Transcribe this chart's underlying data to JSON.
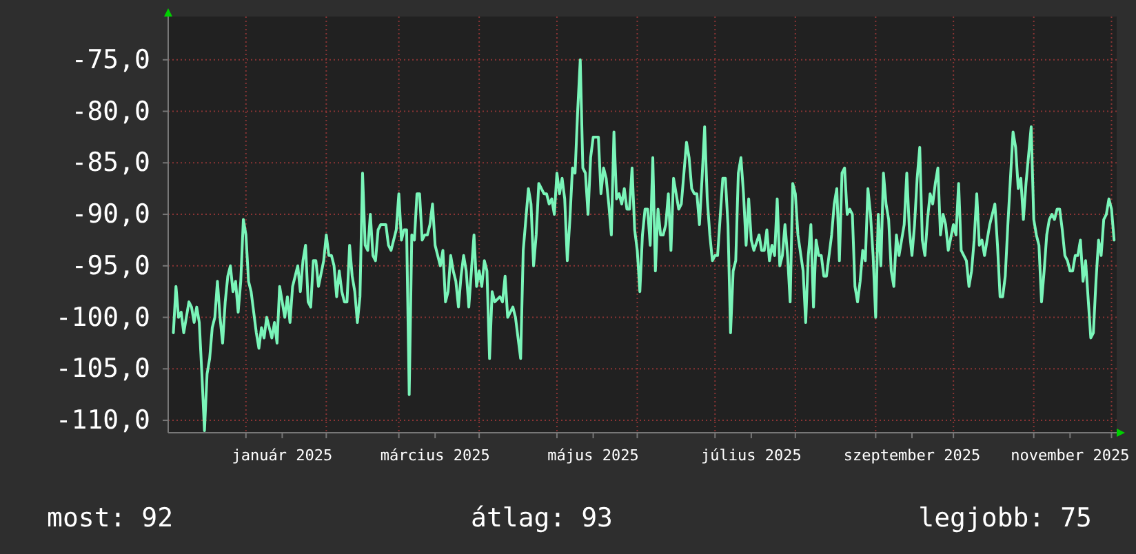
{
  "chart_data": {
    "type": "line",
    "x": [
      "2024-12-04",
      "2024-12-05",
      "2024-12-06",
      "2024-12-07",
      "2024-12-08",
      "2024-12-10",
      "2024-12-11",
      "2024-12-12",
      "2024-12-13",
      "2024-12-14",
      "2024-12-15",
      "2024-12-16",
      "2024-12-17",
      "2024-12-18",
      "2024-12-19",
      "2024-12-20",
      "2024-12-21",
      "2024-12-22",
      "2024-12-23",
      "2024-12-24",
      "2024-12-25",
      "2024-12-26",
      "2024-12-27",
      "2024-12-28",
      "2024-12-29",
      "2024-12-30",
      "2024-12-31",
      "2025-01-01",
      "2025-01-02",
      "2025-01-03",
      "2025-01-05",
      "2025-01-06",
      "2025-01-07",
      "2025-01-08",
      "2025-01-09",
      "2025-01-11",
      "2025-01-12",
      "2025-01-13",
      "2025-01-14",
      "2025-01-16",
      "2025-01-17",
      "2025-01-18",
      "2025-01-19",
      "2025-01-20",
      "2025-01-21",
      "2025-01-22",
      "2025-01-23",
      "2025-01-24",
      "2025-01-25",
      "2025-01-26",
      "2025-01-27",
      "2025-01-28",
      "2025-01-29",
      "2025-01-31",
      "2025-02-01",
      "2025-02-02",
      "2025-02-03",
      "2025-02-04",
      "2025-02-05",
      "2025-02-06",
      "2025-02-07",
      "2025-02-08",
      "2025-02-09",
      "2025-02-10",
      "2025-02-11",
      "2025-02-12",
      "2025-02-13",
      "2025-02-14",
      "2025-02-15",
      "2025-02-16",
      "2025-02-17",
      "2025-02-18",
      "2025-02-19",
      "2025-02-20",
      "2025-02-21",
      "2025-02-22",
      "2025-02-24",
      "2025-02-25",
      "2025-02-26",
      "2025-02-28",
      "2025-03-01",
      "2025-03-02",
      "2025-03-03",
      "2025-03-04",
      "2025-03-05",
      "2025-03-06",
      "2025-03-07",
      "2025-03-08",
      "2025-03-09",
      "2025-03-10",
      "2025-03-11",
      "2025-03-12",
      "2025-03-13",
      "2025-03-14",
      "2025-03-15",
      "2025-03-17",
      "2025-03-18",
      "2025-03-19",
      "2025-03-20",
      "2025-03-21",
      "2025-03-22",
      "2025-03-23",
      "2025-03-24",
      "2025-03-25",
      "2025-03-26",
      "2025-03-27",
      "2025-03-28",
      "2025-03-30",
      "2025-03-31",
      "2025-04-01",
      "2025-04-02",
      "2025-04-03",
      "2025-04-04",
      "2025-04-05",
      "2025-04-06",
      "2025-04-07",
      "2025-04-09",
      "2025-04-10",
      "2025-04-11",
      "2025-04-12",
      "2025-04-13",
      "2025-04-14",
      "2025-04-15",
      "2025-04-17",
      "2025-04-18",
      "2025-04-19",
      "2025-04-20",
      "2025-04-21",
      "2025-04-22",
      "2025-04-23",
      "2025-04-24",
      "2025-04-26",
      "2025-04-27",
      "2025-04-28",
      "2025-04-29",
      "2025-04-30",
      "2025-05-01",
      "2025-05-02",
      "2025-05-03",
      "2025-05-04",
      "2025-05-05",
      "2025-05-06",
      "2025-05-07",
      "2025-05-08",
      "2025-05-09",
      "2025-05-10",
      "2025-05-11",
      "2025-05-12",
      "2025-05-13",
      "2025-05-14",
      "2025-05-15",
      "2025-05-17",
      "2025-05-18",
      "2025-05-19",
      "2025-05-20",
      "2025-05-21",
      "2025-05-22",
      "2025-05-23",
      "2025-05-24",
      "2025-05-25",
      "2025-05-26",
      "2025-05-27",
      "2025-05-28",
      "2025-05-29",
      "2025-05-30",
      "2025-05-31",
      "2025-06-01",
      "2025-06-02",
      "2025-06-03",
      "2025-06-04",
      "2025-06-05",
      "2025-06-06",
      "2025-06-07",
      "2025-06-08",
      "2025-06-09",
      "2025-06-10",
      "2025-06-11",
      "2025-06-12",
      "2025-06-13",
      "2025-06-14",
      "2025-06-15",
      "2025-06-16",
      "2025-06-17",
      "2025-06-18",
      "2025-06-20",
      "2025-06-21",
      "2025-06-22",
      "2025-06-23",
      "2025-06-24",
      "2025-06-25",
      "2025-06-26",
      "2025-06-27",
      "2025-06-28",
      "2025-06-29",
      "2025-06-30",
      "2025-07-01",
      "2025-07-02",
      "2025-07-04",
      "2025-07-05",
      "2025-07-06",
      "2025-07-07",
      "2025-07-08",
      "2025-07-09",
      "2025-07-10",
      "2025-07-11",
      "2025-07-12",
      "2025-07-13",
      "2025-07-14",
      "2025-07-15",
      "2025-07-16",
      "2025-07-18",
      "2025-07-19",
      "2025-07-20",
      "2025-07-21",
      "2025-07-22",
      "2025-07-23",
      "2025-07-24",
      "2025-07-25",
      "2025-07-26",
      "2025-07-27",
      "2025-07-28",
      "2025-07-29",
      "2025-07-30",
      "2025-07-31",
      "2025-08-01",
      "2025-08-02",
      "2025-08-04",
      "2025-08-05",
      "2025-08-06",
      "2025-08-07",
      "2025-08-08",
      "2025-08-09",
      "2025-08-10",
      "2025-08-11",
      "2025-08-12",
      "2025-08-13",
      "2025-08-15",
      "2025-08-16",
      "2025-08-17",
      "2025-08-18",
      "2025-08-19",
      "2025-08-20",
      "2025-08-21",
      "2025-08-22",
      "2025-08-23",
      "2025-08-24",
      "2025-08-25",
      "2025-08-26",
      "2025-08-27",
      "2025-08-28",
      "2025-08-29",
      "2025-08-30",
      "2025-08-31",
      "2025-09-01",
      "2025-09-02",
      "2025-09-03",
      "2025-09-04",
      "2025-09-05",
      "2025-09-06",
      "2025-09-07",
      "2025-09-08",
      "2025-09-09",
      "2025-09-10",
      "2025-09-12",
      "2025-09-13",
      "2025-09-14",
      "2025-09-15",
      "2025-09-16",
      "2025-09-17",
      "2025-09-18",
      "2025-09-19",
      "2025-09-20",
      "2025-09-21",
      "2025-09-22",
      "2025-09-23",
      "2025-09-24",
      "2025-09-25",
      "2025-09-26",
      "2025-09-27",
      "2025-09-28",
      "2025-09-29",
      "2025-10-01",
      "2025-10-02",
      "2025-10-03",
      "2025-10-04",
      "2025-10-05",
      "2025-10-06",
      "2025-10-07",
      "2025-10-08",
      "2025-10-09",
      "2025-10-10",
      "2025-10-11",
      "2025-10-12",
      "2025-10-13",
      "2025-10-14",
      "2025-10-15",
      "2025-10-17",
      "2025-10-18",
      "2025-10-19",
      "2025-10-20",
      "2025-10-21",
      "2025-10-22",
      "2025-10-23",
      "2025-10-24",
      "2025-10-25",
      "2025-10-26",
      "2025-10-27",
      "2025-10-28",
      "2025-10-29",
      "2025-10-31",
      "2025-11-01",
      "2025-11-02",
      "2025-11-03",
      "2025-11-04",
      "2025-11-05",
      "2025-11-06",
      "2025-11-07",
      "2025-11-08",
      "2025-11-09",
      "2025-11-10",
      "2025-11-11",
      "2025-11-12",
      "2025-11-13",
      "2025-11-14",
      "2025-11-15",
      "2025-11-16",
      "2025-11-17",
      "2025-11-18",
      "2025-11-19",
      "2025-11-20",
      "2025-11-21",
      "2025-11-23",
      "2025-11-24",
      "2025-11-25",
      "2025-11-26",
      "2025-11-27",
      "2025-11-28",
      "2025-11-29",
      "2025-11-30",
      "2025-12-01",
      "2025-12-02"
    ],
    "series": [
      {
        "color": "#7af5b9",
        "values": [
          -101.5,
          -97,
          -100,
          -99.5,
          -101.5,
          -98.5,
          -99,
          -100.5,
          -99,
          -100.5,
          -105.5,
          -111,
          -105.5,
          -104,
          -101,
          -100,
          -96.5,
          -100,
          -102.5,
          -98.5,
          -96,
          -95,
          -97.5,
          -96.5,
          -99.5,
          -96.5,
          -90.5,
          -92,
          -96.5,
          -97.5,
          -101.5,
          -103,
          -101,
          -102,
          -100,
          -102,
          -100.5,
          -102.5,
          -97,
          -100,
          -98,
          -100.5,
          -97,
          -96,
          -95,
          -97.5,
          -94.5,
          -93,
          -98.5,
          -99,
          -94.5,
          -94.5,
          -97,
          -94.5,
          -92,
          -94,
          -94,
          -95,
          -98,
          -95.5,
          -97.5,
          -98.5,
          -98.5,
          -93,
          -96,
          -97.5,
          -100.5,
          -98,
          -86,
          -93,
          -93.5,
          -90,
          -94,
          -94.5,
          -91.5,
          -91,
          -91,
          -93,
          -93.5,
          -91.5,
          -88,
          -92.5,
          -91.5,
          -91.5,
          -107.5,
          -92,
          -92.5,
          -88,
          -88,
          -92.5,
          -92,
          -92,
          -91,
          -89,
          -93,
          -95,
          -93.5,
          -98.5,
          -97.5,
          -94,
          -95.5,
          -96.5,
          -99,
          -96,
          -94,
          -95.5,
          -99,
          -92,
          -97,
          -95.5,
          -97,
          -94.5,
          -95.5,
          -104,
          -97.5,
          -98.5,
          -98,
          -98.5,
          -96,
          -100,
          -99.5,
          -99,
          -100,
          -104,
          -93.5,
          -90.5,
          -87.5,
          -89,
          -95,
          -92,
          -87,
          -88,
          -88,
          -89,
          -88.5,
          -90,
          -86,
          -88,
          -86.5,
          -88.5,
          -94.5,
          -90.5,
          -85.5,
          -86,
          -80,
          -75,
          -85.5,
          -86,
          -90,
          -84.5,
          -82.5,
          -82.5,
          -88,
          -85.5,
          -86.5,
          -89,
          -92,
          -82,
          -88.5,
          -88,
          -89,
          -87.5,
          -89.5,
          -89.5,
          -85.5,
          -91.5,
          -93.5,
          -97.5,
          -92,
          -89.5,
          -89.5,
          -93,
          -84.5,
          -95.5,
          -89.5,
          -92,
          -92,
          -91,
          -88,
          -93.5,
          -86.5,
          -88,
          -89.5,
          -89,
          -83,
          -84.5,
          -87.5,
          -88,
          -88,
          -91,
          -86.5,
          -81.5,
          -88.5,
          -92,
          -94.5,
          -94,
          -94,
          -86.5,
          -86.5,
          -91,
          -101.5,
          -95.5,
          -94.5,
          -86,
          -84.5,
          -88,
          -93,
          -88.5,
          -92.5,
          -93.5,
          -92,
          -93.5,
          -93.5,
          -91.5,
          -94.5,
          -93,
          -94,
          -88.5,
          -95,
          -94,
          -91,
          -94,
          -98.5,
          -87,
          -88,
          -92,
          -95.5,
          -100.5,
          -94,
          -91,
          -99,
          -92.5,
          -94,
          -94,
          -96,
          -96,
          -92,
          -89,
          -87.5,
          -94.5,
          -86,
          -85.5,
          -90,
          -89.5,
          -90,
          -97,
          -98.5,
          -96.5,
          -93.5,
          -94.5,
          -87.5,
          -90,
          -94,
          -100,
          -90,
          -95,
          -86,
          -89,
          -90.5,
          -95.5,
          -97,
          -92,
          -94,
          -91,
          -86,
          -91.5,
          -94,
          -91,
          -86.5,
          -83.5,
          -92.5,
          -94,
          -90.5,
          -88,
          -89,
          -87,
          -85.5,
          -92,
          -90,
          -91,
          -93.5,
          -91,
          -92,
          -87,
          -93.5,
          -94,
          -94.5,
          -97,
          -95.5,
          -92.5,
          -88,
          -93,
          -92.5,
          -94,
          -92.5,
          -91,
          -89,
          -93,
          -98,
          -98,
          -96,
          -91,
          -86.5,
          -82,
          -83.5,
          -87.5,
          -86.5,
          -90.5,
          -87,
          -81.5,
          -90.5,
          -92,
          -93,
          -98.5,
          -95.5,
          -92,
          -90.5,
          -90,
          -90.5,
          -89.5,
          -89.5,
          -91.5,
          -94,
          -94.5,
          -95.5,
          -95.5,
          -94,
          -94,
          -92.5,
          -96.5,
          -94.5,
          -102,
          -101.5,
          -96.5,
          -92.5,
          -94,
          -90.5,
          -90,
          -88.5,
          -89.5,
          -92.5
        ]
      }
    ],
    "xlim": [
      "2024-12-02",
      "2025-12-03"
    ],
    "xticks": [
      {
        "value": "2025-01-01",
        "label": null
      },
      {
        "value": "2025-01-15",
        "label": "január 2025"
      },
      {
        "value": "2025-02-01",
        "label": null
      },
      {
        "value": "2025-03-01",
        "label": null
      },
      {
        "value": "2025-03-15",
        "label": "március 2025"
      },
      {
        "value": "2025-04-01",
        "label": null
      },
      {
        "value": "2025-05-01",
        "label": null
      },
      {
        "value": "2025-05-15",
        "label": "május 2025"
      },
      {
        "value": "2025-06-01",
        "label": null
      },
      {
        "value": "2025-07-01",
        "label": null
      },
      {
        "value": "2025-07-15",
        "label": "július 2025"
      },
      {
        "value": "2025-08-01",
        "label": null
      },
      {
        "value": "2025-09-01",
        "label": null
      },
      {
        "value": "2025-09-15",
        "label": "szeptember 2025"
      },
      {
        "value": "2025-10-01",
        "label": null
      },
      {
        "value": "2025-11-01",
        "label": null
      },
      {
        "value": "2025-11-15",
        "label": "november 2025"
      },
      {
        "value": "2025-12-01",
        "label": null
      }
    ],
    "ylim": [
      -111.2,
      -70.8
    ],
    "yticks": [
      {
        "value": -75,
        "label": "-75,0"
      },
      {
        "value": -80,
        "label": "-80,0"
      },
      {
        "value": -85,
        "label": "-85,0"
      },
      {
        "value": -90,
        "label": "-90,0"
      },
      {
        "value": -95,
        "label": "-95,0"
      },
      {
        "value": -100,
        "label": "-100,0"
      },
      {
        "value": -105,
        "label": "-105,0"
      },
      {
        "value": -110,
        "label": "-110,0"
      }
    ],
    "grid": true,
    "annotations": [
      "most: 92",
      "átlag: 93",
      "legjobb: 75"
    ]
  }
}
